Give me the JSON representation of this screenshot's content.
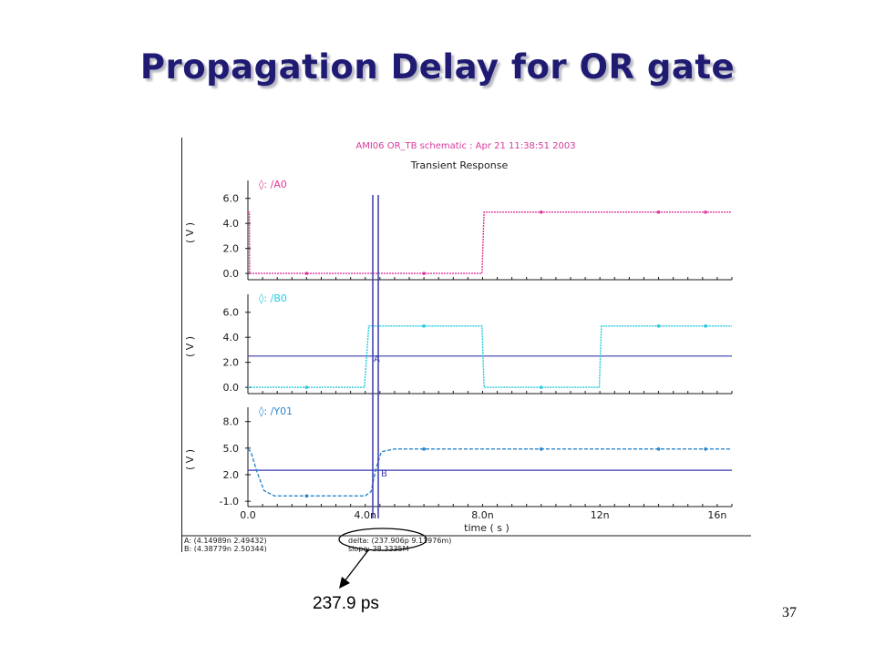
{
  "slide": {
    "title": "Propagation Delay for OR gate",
    "callout": "237.9 ps",
    "page_number": "37"
  },
  "scope": {
    "header": "AMI06 OR_TB schematic : Apr 21 11:38:51 2003",
    "subtitle": "Transient Response",
    "ylabel": "( V )",
    "xlabel": "time ( s )",
    "x_tick_labels": [
      "0.0",
      "4.0n",
      "8.0n",
      "12n",
      "16n"
    ],
    "marker_A_label": "A",
    "marker_B_label": "B",
    "readout_A": "A: (4.14989n 2.49432)",
    "readout_B": "B: (4.38779n 2.50344)",
    "readout_delta": "delta: (237.906p 9.11976m)",
    "readout_slope": "slope: 38.3335M",
    "colors": {
      "A0": "#e0399a",
      "B0": "#22ccde",
      "Y01": "#2a86cc",
      "cursor": "#3a3ab0",
      "axis": "#1a1a1a"
    }
  },
  "chart_data": [
    {
      "type": "line",
      "title": "",
      "series": [
        {
          "name": "/A0",
          "x": [
            0,
            0.05,
            0.06,
            7.98,
            8.05,
            16.5
          ],
          "y": [
            4.9,
            4.9,
            0,
            0,
            4.9,
            4.9
          ]
        }
      ],
      "xlim": [
        0,
        16.5
      ],
      "ylim": [
        -0.5,
        7
      ],
      "yticks": [
        0,
        2,
        4,
        6
      ],
      "ytick_labels": [
        "0.0",
        "2.0",
        "4.0",
        "6.0"
      ]
    },
    {
      "type": "line",
      "title": "",
      "series": [
        {
          "name": "/B0",
          "x": [
            0,
            3.97,
            4.12,
            7.98,
            8.05,
            11.98,
            12.05,
            16.5
          ],
          "y": [
            0,
            0,
            4.9,
            4.9,
            0,
            0,
            4.9,
            4.9
          ]
        }
      ],
      "xlim": [
        0,
        16.5
      ],
      "ylim": [
        -0.5,
        7
      ],
      "yticks": [
        0,
        2,
        4,
        6
      ],
      "ytick_labels": [
        "0.0",
        "2.0",
        "4.0",
        "6.0"
      ],
      "hline": 2.5
    },
    {
      "type": "line",
      "title": "",
      "series": [
        {
          "name": "/Y01",
          "x": [
            0,
            0.1,
            0.3,
            0.55,
            0.9,
            4.0,
            4.2,
            4.35,
            4.55,
            5.0,
            16.5
          ],
          "y": [
            4.9,
            4.6,
            2.4,
            0.2,
            -0.4,
            -0.4,
            0.1,
            2.5,
            4.6,
            4.9,
            4.9
          ]
        }
      ],
      "xlim": [
        0,
        16.5
      ],
      "ylim": [
        -1.6,
        9
      ],
      "yticks": [
        -1,
        2,
        5,
        8
      ],
      "ytick_labels": [
        "-1.0",
        "2.0",
        "5.0",
        "8.0"
      ],
      "hline": 2.5
    }
  ]
}
